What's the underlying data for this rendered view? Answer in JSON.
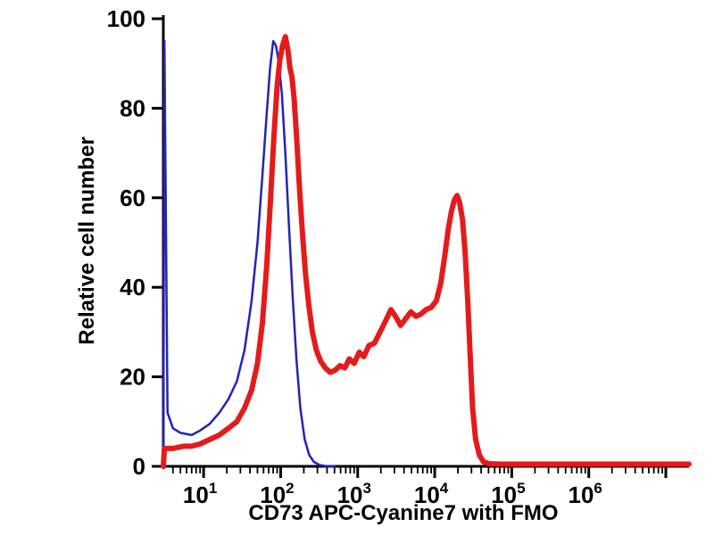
{
  "chart_data": {
    "type": "line",
    "subtype": "flow-cytometry-histogram",
    "title": "",
    "xlabel": "CD73 APC-Cyanine7 with FMO",
    "ylabel": "Relative cell number",
    "x_scale": "log",
    "xlim": [
      3,
      20000000
    ],
    "ylim": [
      0,
      100
    ],
    "x_major_ticks": [
      10,
      100,
      1000,
      10000,
      100000,
      1000000
    ],
    "x_tick_exponents": [
      "1",
      "2",
      "3",
      "4",
      "5",
      "6"
    ],
    "x_unlabeled_major_ticks": [
      10000000
    ],
    "y_ticks": [
      0,
      20,
      40,
      60,
      80,
      100
    ],
    "grid": false,
    "legend": "none",
    "background": "#ffffff",
    "axis_color": "#000000",
    "series": [
      {
        "name": "blue-thin-curve",
        "color": "#2323b8",
        "stroke_width": 2.5,
        "peak": {
          "x": 80,
          "y": 95
        },
        "points": [
          [
            3,
            0
          ],
          [
            3.1,
            95
          ],
          [
            3.4,
            12
          ],
          [
            4,
            8.5
          ],
          [
            5,
            7.5
          ],
          [
            7,
            7
          ],
          [
            9,
            8
          ],
          [
            12,
            9.5
          ],
          [
            16,
            12
          ],
          [
            21,
            15
          ],
          [
            27,
            19
          ],
          [
            34,
            26
          ],
          [
            42,
            37
          ],
          [
            50,
            50
          ],
          [
            58,
            65
          ],
          [
            66,
            79
          ],
          [
            73,
            89
          ],
          [
            80,
            95
          ],
          [
            87,
            94
          ],
          [
            95,
            90
          ],
          [
            104,
            83
          ],
          [
            115,
            70
          ],
          [
            128,
            54
          ],
          [
            143,
            38
          ],
          [
            160,
            24
          ],
          [
            180,
            13
          ],
          [
            205,
            6
          ],
          [
            235,
            2.5
          ],
          [
            270,
            1
          ],
          [
            320,
            0.3
          ],
          [
            400,
            0
          ],
          [
            500,
            0
          ]
        ]
      },
      {
        "name": "red-thick-curve",
        "color": "#e41b1b",
        "stroke_width": 6,
        "peaks": [
          {
            "x": 115,
            "y": 96
          },
          {
            "x": 19500,
            "y": 60.5
          }
        ],
        "points": [
          [
            3,
            0
          ],
          [
            3.1,
            4
          ],
          [
            4,
            4
          ],
          [
            5.5,
            4.5
          ],
          [
            7,
            4.5
          ],
          [
            9,
            5
          ],
          [
            12,
            6
          ],
          [
            16,
            7
          ],
          [
            21,
            8.5
          ],
          [
            27,
            10
          ],
          [
            34,
            13
          ],
          [
            42,
            17
          ],
          [
            50,
            23
          ],
          [
            58,
            32
          ],
          [
            66,
            45
          ],
          [
            74,
            60
          ],
          [
            82,
            74
          ],
          [
            90,
            85
          ],
          [
            98,
            91
          ],
          [
            106,
            94
          ],
          [
            115,
            96
          ],
          [
            124,
            93
          ],
          [
            132,
            89
          ],
          [
            140,
            87
          ],
          [
            150,
            82
          ],
          [
            162,
            73
          ],
          [
            176,
            62
          ],
          [
            192,
            52
          ],
          [
            210,
            43
          ],
          [
            232,
            36
          ],
          [
            258,
            30
          ],
          [
            290,
            26
          ],
          [
            330,
            23.5
          ],
          [
            380,
            22
          ],
          [
            440,
            21
          ],
          [
            510,
            21.5
          ],
          [
            590,
            22.5
          ],
          [
            680,
            22
          ],
          [
            780,
            24
          ],
          [
            900,
            23
          ],
          [
            1050,
            25.5
          ],
          [
            1200,
            24.5
          ],
          [
            1400,
            27
          ],
          [
            1650,
            27.5
          ],
          [
            1950,
            30
          ],
          [
            2300,
            32.5
          ],
          [
            2700,
            35
          ],
          [
            3100,
            33.5
          ],
          [
            3600,
            31.5
          ],
          [
            4200,
            33
          ],
          [
            4900,
            34.5
          ],
          [
            5700,
            33.5
          ],
          [
            6600,
            34
          ],
          [
            7700,
            35
          ],
          [
            9000,
            35.5
          ],
          [
            10500,
            37
          ],
          [
            12000,
            41
          ],
          [
            13500,
            47
          ],
          [
            15000,
            53
          ],
          [
            16500,
            57
          ],
          [
            18000,
            59.5
          ],
          [
            19500,
            60.5
          ],
          [
            21000,
            59
          ],
          [
            23000,
            55
          ],
          [
            25000,
            47
          ],
          [
            27000,
            36
          ],
          [
            29000,
            24
          ],
          [
            31000,
            13
          ],
          [
            34000,
            6
          ],
          [
            38000,
            2.5
          ],
          [
            43000,
            1
          ],
          [
            50000,
            0.6
          ],
          [
            70000,
            0.5
          ],
          [
            100000,
            0.5
          ],
          [
            500000,
            0.5
          ],
          [
            1000000,
            0.5
          ],
          [
            5000000,
            0.5
          ],
          [
            20000000,
            0.5
          ]
        ]
      }
    ]
  }
}
